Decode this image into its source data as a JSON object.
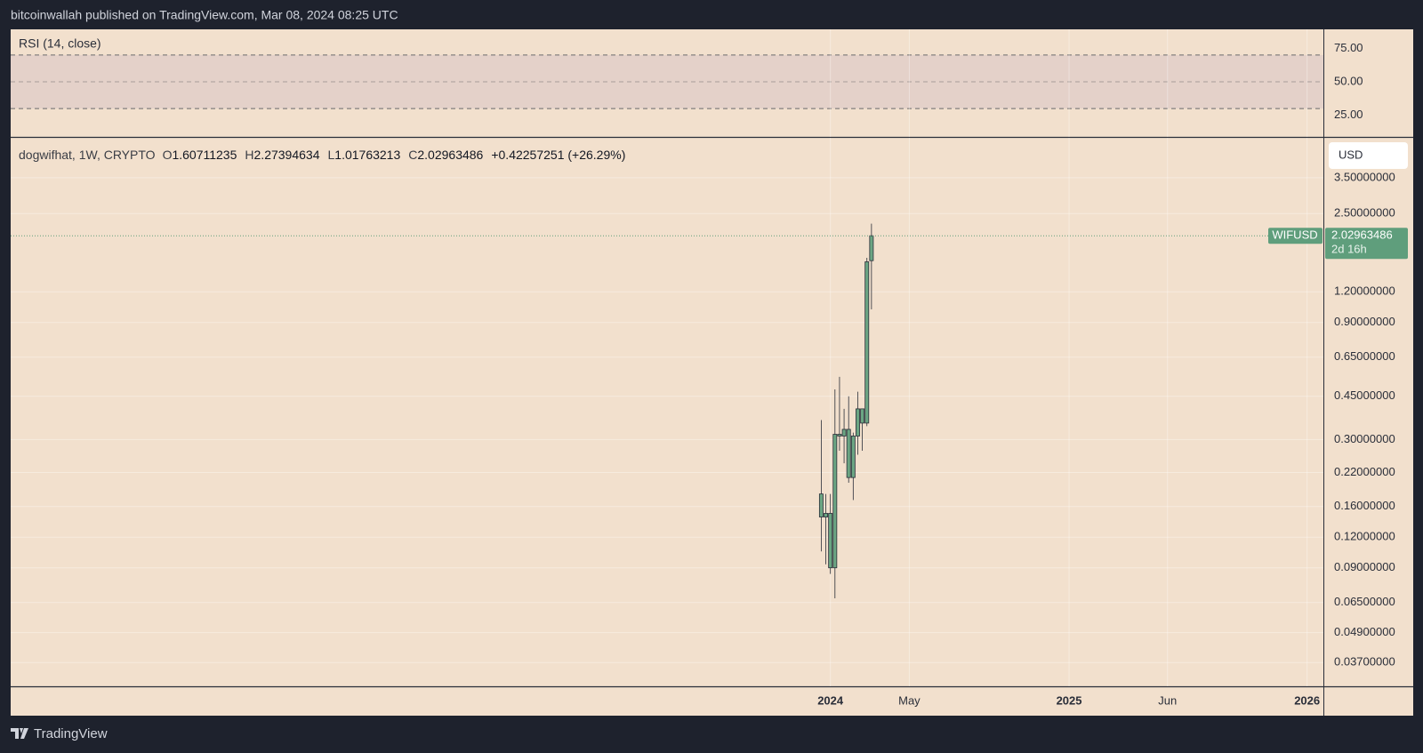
{
  "header": {
    "published": "bitcoinwallah published on TradingView.com, Mar 08, 2024 08:25 UTC"
  },
  "footer": {
    "brand": "TradingView"
  },
  "currency_button": "USD",
  "chart_data": [
    {
      "type": "rsi",
      "title": "RSI (14, close)",
      "ylim": [
        8.8,
        89.2
      ],
      "yticks": [
        {
          "value": 25,
          "label": "25.00"
        },
        {
          "value": 50,
          "label": "50.00"
        },
        {
          "value": 75,
          "label": "75.00"
        }
      ],
      "levels": [
        30,
        50,
        70
      ],
      "band_color": "#e4d1c9",
      "level_color": "#6b6b6b"
    },
    {
      "type": "candlestick",
      "symbol": "dogwifhat, 1W, CRYPTO",
      "ohlc_prefixes": [
        "O",
        "H",
        "L",
        "C"
      ],
      "change_label": "+0.42257251 (+26.29%)",
      "ticker": "WIFUSD",
      "countdown": "2d 16h",
      "log_scale": true,
      "grid": true,
      "ylim": [
        0.0296,
        5.09
      ],
      "yticks": [
        {
          "value": 0.037,
          "label": "0.03700000"
        },
        {
          "value": 0.049,
          "label": "0.04900000"
        },
        {
          "value": 0.065,
          "label": "0.06500000"
        },
        {
          "value": 0.09,
          "label": "0.09000000"
        },
        {
          "value": 0.12,
          "label": "0.12000000"
        },
        {
          "value": 0.16,
          "label": "0.16000000"
        },
        {
          "value": 0.22,
          "label": "0.22000000"
        },
        {
          "value": 0.3,
          "label": "0.30000000"
        },
        {
          "value": 0.45,
          "label": "0.45000000"
        },
        {
          "value": 0.65,
          "label": "0.65000000"
        },
        {
          "value": 0.9,
          "label": "0.90000000"
        },
        {
          "value": 1.2,
          "label": "1.20000000"
        },
        {
          "value": 2.5,
          "label": "2.50000000"
        },
        {
          "value": 3.5,
          "label": "3.50000000"
        }
      ],
      "xlim": [
        "2020-07-23",
        "2026-01-26"
      ],
      "xticks": [
        {
          "value": "2024-01-01",
          "label": "2024"
        },
        {
          "value": "2024-05-01",
          "label": "May"
        },
        {
          "value": "2025-01-01",
          "label": "2025"
        },
        {
          "value": "2025-06-01",
          "label": "Jun"
        },
        {
          "value": "2026-01-01",
          "label": "2026"
        }
      ],
      "x": [
        "2023-12-18",
        "2023-12-25",
        "2024-01-01",
        "2024-01-08",
        "2024-01-15",
        "2024-01-22",
        "2024-01-29",
        "2024-02-05",
        "2024-02-12",
        "2024-02-19",
        "2024-02-26",
        "2024-03-04"
      ],
      "open": [
        0.18,
        0.145,
        0.15,
        0.09,
        0.315,
        0.31,
        0.33,
        0.21,
        0.31,
        0.4,
        0.35,
        1.60711235
      ],
      "high": [
        0.36,
        0.18,
        0.18,
        0.48,
        0.54,
        0.4,
        0.45,
        0.32,
        0.47,
        0.4,
        1.65,
        2.27394634
      ],
      "low": [
        0.105,
        0.093,
        0.085,
        0.0676,
        0.27,
        0.24,
        0.2,
        0.17,
        0.26,
        0.27,
        0.34,
        1.01763213
      ],
      "close": [
        0.145,
        0.15,
        0.09,
        0.315,
        0.31,
        0.33,
        0.21,
        0.31,
        0.4,
        0.35,
        1.59,
        2.02963486
      ],
      "color": "#6ba583",
      "border_color": "#2a2e39",
      "tag_color": "#5f9e7c"
    }
  ]
}
